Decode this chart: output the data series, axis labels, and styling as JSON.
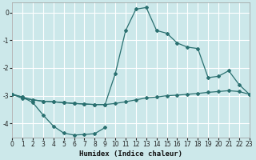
{
  "xlabel": "Humidex (Indice chaleur)",
  "bg_color": "#cce8ea",
  "grid_color": "#b0d8db",
  "line_color": "#2a7070",
  "xlim": [
    0,
    23
  ],
  "ylim": [
    -4.5,
    0.35
  ],
  "yticks": [
    0,
    -1,
    -2,
    -3,
    -4
  ],
  "xticks": [
    0,
    1,
    2,
    3,
    4,
    5,
    6,
    7,
    8,
    9,
    10,
    11,
    12,
    13,
    14,
    15,
    16,
    17,
    18,
    19,
    20,
    21,
    22,
    23
  ],
  "line1_x": [
    0,
    1,
    2,
    3,
    4,
    5,
    6,
    7,
    8,
    9,
    10,
    11,
    12,
    13,
    14,
    15,
    16,
    17,
    18,
    19,
    20,
    21,
    22,
    23
  ],
  "line1_y": [
    -2.95,
    -3.1,
    -3.15,
    -3.2,
    -3.22,
    -3.25,
    -3.28,
    -3.3,
    -3.32,
    -3.32,
    -3.28,
    -3.22,
    -3.15,
    -3.08,
    -3.05,
    -3.0,
    -2.98,
    -2.95,
    -2.92,
    -2.88,
    -2.85,
    -2.82,
    -2.85,
    -2.95
  ],
  "line2_x": [
    0,
    1,
    2,
    3,
    4,
    5,
    6,
    7,
    8,
    9,
    10,
    11,
    12,
    13,
    14,
    15,
    16,
    17,
    18,
    19,
    20,
    21,
    22,
    23
  ],
  "line2_y": [
    -2.95,
    -3.05,
    -3.15,
    -3.2,
    -3.22,
    -3.25,
    -3.28,
    -3.3,
    -3.32,
    -3.32,
    -2.2,
    -0.65,
    0.12,
    0.18,
    -0.65,
    -0.75,
    -1.1,
    -1.25,
    -1.3,
    -2.35,
    -2.3,
    -2.1,
    -2.6,
    -2.95
  ],
  "line3_x": [
    0,
    1,
    2,
    3,
    4,
    5,
    6,
    7,
    8,
    9
  ],
  "line3_y": [
    -2.95,
    -3.05,
    -3.25,
    -3.7,
    -4.1,
    -4.35,
    -4.42,
    -4.4,
    -4.37,
    -4.15
  ]
}
